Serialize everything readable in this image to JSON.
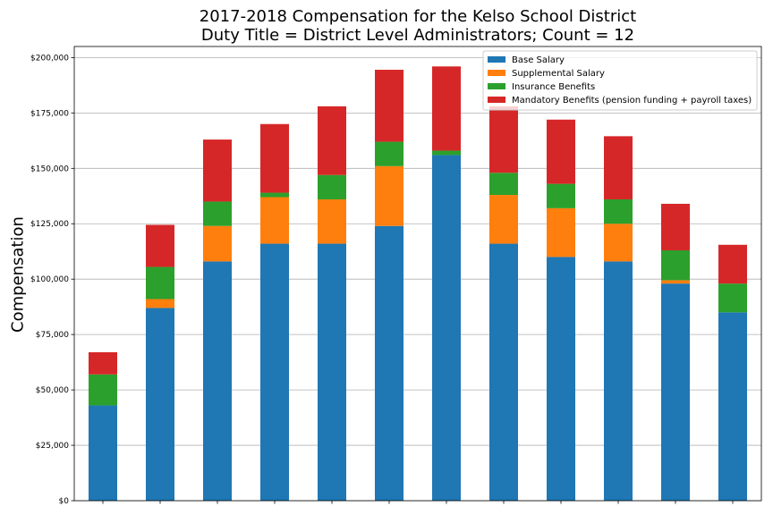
{
  "chart_data": {
    "type": "bar",
    "stacked": true,
    "title": "2017-2018 Compensation for the Kelso School District",
    "subtitle": "Duty Title = District Level Administrators; Count = 12",
    "xlabel": "",
    "ylabel": "Compensation",
    "ylim": [
      0,
      205000
    ],
    "yticks": [
      0,
      25000,
      50000,
      75000,
      100000,
      125000,
      150000,
      175000,
      200000
    ],
    "ytick_labels": [
      "$0",
      "$25,000",
      "$50,000",
      "$75,000",
      "$100,000",
      "$125,000",
      "$150,000",
      "$175,000",
      "$200,000"
    ],
    "grid": "y",
    "legend_position": "top-right",
    "categories": [
      "",
      "",
      "",
      "",
      "",
      "",
      "",
      "",
      "",
      "",
      "",
      ""
    ],
    "series": [
      {
        "name": "Base Salary",
        "color": "#1f77b4",
        "values": [
          43000,
          87000,
          108000,
          116000,
          116000,
          124000,
          156000,
          116000,
          110000,
          108000,
          98000,
          85000
        ]
      },
      {
        "name": "Supplemental Salary",
        "color": "#ff7f0e",
        "values": [
          0,
          4000,
          16000,
          21000,
          20000,
          27000,
          0,
          22000,
          22000,
          17000,
          1500,
          0
        ]
      },
      {
        "name": "Insurance Benefits",
        "color": "#2ca02c",
        "values": [
          14000,
          14500,
          11000,
          2000,
          11000,
          11000,
          2000,
          10000,
          11000,
          11000,
          13500,
          13000
        ]
      },
      {
        "name": "Mandatory Benefits (pension funding + payroll taxes)",
        "color": "#d62728",
        "values": [
          10000,
          19000,
          28000,
          31000,
          31000,
          32500,
          38000,
          30000,
          29000,
          28500,
          21000,
          17500
        ]
      }
    ]
  }
}
